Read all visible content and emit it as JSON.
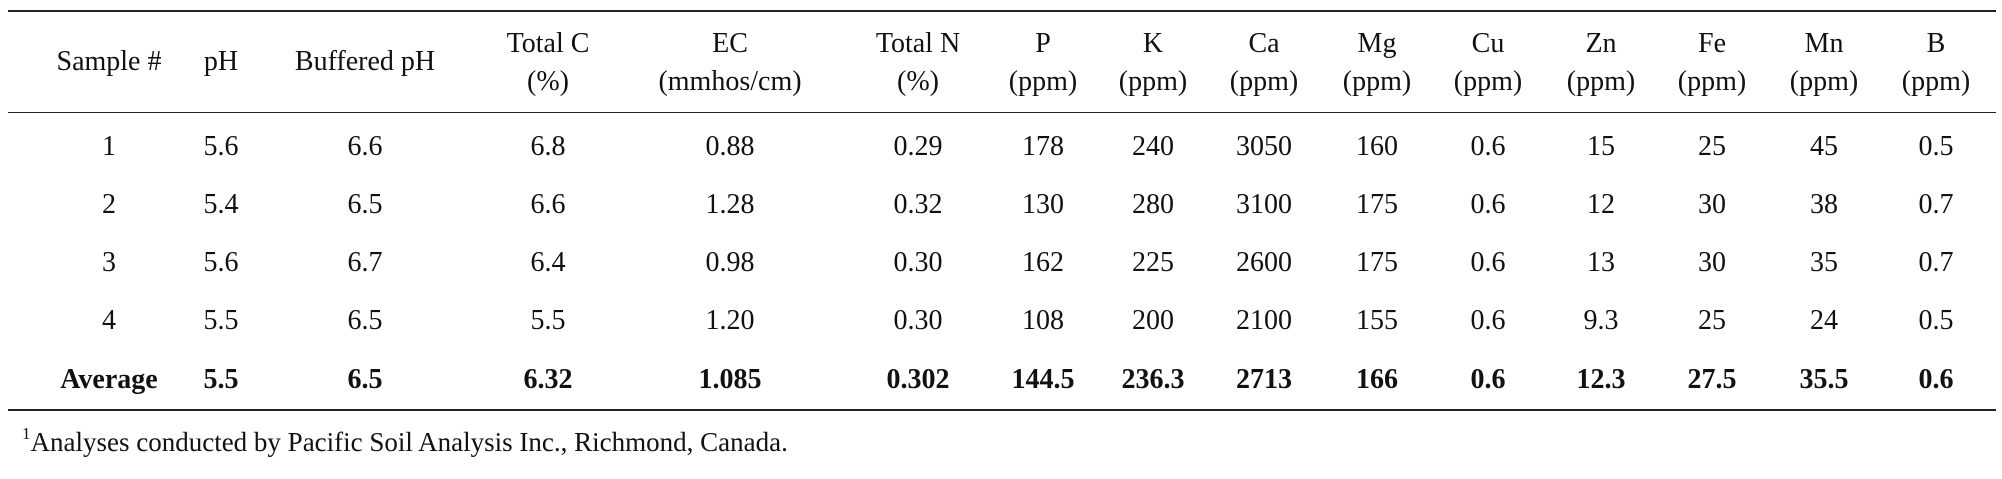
{
  "table": {
    "headers": [
      [
        "Sample #"
      ],
      [
        "pH"
      ],
      [
        "Buffered pH"
      ],
      [
        "Total C",
        "(%)"
      ],
      [
        "EC",
        "(mmhos/cm)"
      ],
      [
        "Total N",
        "(%)"
      ],
      [
        "P",
        "(ppm)"
      ],
      [
        "K",
        "(ppm)"
      ],
      [
        "Ca",
        "(ppm)"
      ],
      [
        "Mg",
        "(ppm)"
      ],
      [
        "Cu",
        "(ppm)"
      ],
      [
        "Zn",
        "(ppm)"
      ],
      [
        "Fe",
        "(ppm)"
      ],
      [
        "Mn",
        "(ppm)"
      ],
      [
        "B",
        "(ppm)"
      ]
    ],
    "rows": [
      [
        "1",
        "5.6",
        "6.6",
        "6.8",
        "0.88",
        "0.29",
        "178",
        "240",
        "3050",
        "160",
        "0.6",
        "15",
        "25",
        "45",
        "0.5"
      ],
      [
        "2",
        "5.4",
        "6.5",
        "6.6",
        "1.28",
        "0.32",
        "130",
        "280",
        "3100",
        "175",
        "0.6",
        "12",
        "30",
        "38",
        "0.7"
      ],
      [
        "3",
        "5.6",
        "6.7",
        "6.4",
        "0.98",
        "0.30",
        "162",
        "225",
        "2600",
        "175",
        "0.6",
        "13",
        "30",
        "35",
        "0.7"
      ],
      [
        "4",
        "5.5",
        "6.5",
        "5.5",
        "1.20",
        "0.30",
        "108",
        "200",
        "2100",
        "155",
        "0.6",
        "9.3",
        "25",
        "24",
        "0.5"
      ]
    ],
    "average": [
      "Average",
      "5.5",
      "6.5",
      "6.32",
      "1.085",
      "0.302",
      "144.5",
      "236.3",
      "2713",
      "166",
      "0.6",
      "12.3",
      "27.5",
      "35.5",
      "0.6"
    ]
  },
  "footnote": {
    "marker": "1",
    "text": "Analyses conducted by Pacific Soil Analysis Inc., Richmond, Canada."
  }
}
